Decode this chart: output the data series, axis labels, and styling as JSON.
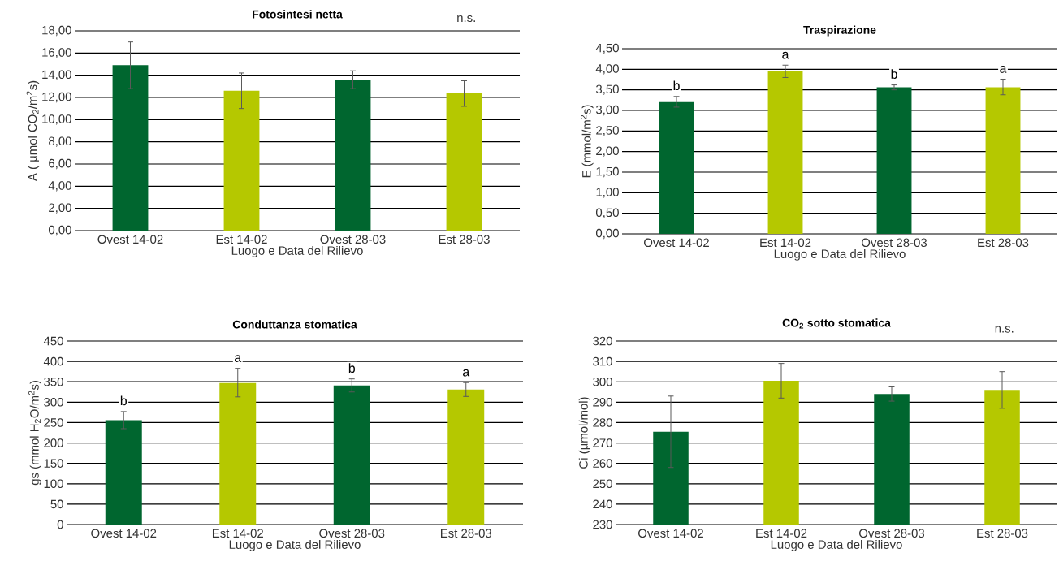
{
  "chart_data": [
    {
      "type": "bar",
      "title": "Fotosintesi netta",
      "xlabel": "Luogo e Data del Rilievo",
      "ylabel": "A ( μmol CO$_{2}$/m$^{2}$s)",
      "categories": [
        "Ovest 14-02",
        "Est 14-02",
        "Ovest 28-03",
        "Est 28-03"
      ],
      "values": [
        14.9,
        12.6,
        13.6,
        12.4
      ],
      "errors": [
        [
          12.8,
          17.0
        ],
        [
          11.0,
          14.2
        ],
        [
          12.8,
          14.4
        ],
        [
          11.2,
          13.5
        ]
      ],
      "colors": [
        "#00662f",
        "#b5c800",
        "#00662f",
        "#b5c800"
      ],
      "ylim": [
        0,
        18
      ],
      "yticks": [
        {
          "value": 0,
          "label": "0,00"
        },
        {
          "value": 2,
          "label": "2,00"
        },
        {
          "value": 4,
          "label": "4,00"
        },
        {
          "value": 6,
          "label": "6,00"
        },
        {
          "value": 8,
          "label": "8,00"
        },
        {
          "value": 10,
          "label": "10,00"
        },
        {
          "value": 12,
          "label": "12,00"
        },
        {
          "value": 14,
          "label": "14,00"
        },
        {
          "value": 16,
          "label": "16,00"
        },
        {
          "value": 18,
          "label": "18,00"
        }
      ],
      "grid": "y",
      "annotations": [
        "n.s."
      ]
    },
    {
      "type": "bar",
      "title": "Traspirazione",
      "xlabel": "Luogo e Data del Rilievo",
      "ylabel": "E (mmol/m$^{2}$s)",
      "categories": [
        "Ovest 14-02",
        "Est 14-02",
        "Ovest 28-03",
        "Est 28-03"
      ],
      "values": [
        3.2,
        3.95,
        3.56,
        3.56
      ],
      "errors": [
        [
          3.08,
          3.34
        ],
        [
          3.8,
          4.1
        ],
        [
          3.5,
          3.62
        ],
        [
          3.38,
          3.76
        ]
      ],
      "colors": [
        "#00662f",
        "#b5c800",
        "#00662f",
        "#b5c800"
      ],
      "ylim": [
        0,
        4.5
      ],
      "yticks": [
        {
          "value": 0,
          "label": "0,00"
        },
        {
          "value": 0.5,
          "label": "0,50"
        },
        {
          "value": 1,
          "label": "1,00"
        },
        {
          "value": 1.5,
          "label": "1,50"
        },
        {
          "value": 2,
          "label": "2,00"
        },
        {
          "value": 2.5,
          "label": "2,50"
        },
        {
          "value": 3,
          "label": "3,00"
        },
        {
          "value": 3.5,
          "label": "3,50"
        },
        {
          "value": 4,
          "label": "4,00"
        },
        {
          "value": 4.5,
          "label": "4,50"
        }
      ],
      "grid": "y",
      "annotations": [
        "b",
        "a",
        "b",
        "a"
      ]
    },
    {
      "type": "bar",
      "title": "Conduttanza stomatica",
      "xlabel": "Luogo e Data del Rilievo",
      "ylabel": "gs (mmol H$_{2}$O/m$^{2}$s)",
      "categories": [
        "Ovest 14-02",
        "Est 14-02",
        "Ovest 28-03",
        "Est 28-03"
      ],
      "values": [
        256,
        347,
        341,
        331
      ],
      "errors": [
        [
          235,
          277
        ],
        [
          313,
          383
        ],
        [
          325,
          357
        ],
        [
          314,
          348
        ]
      ],
      "colors": [
        "#00662f",
        "#b5c800",
        "#00662f",
        "#b5c800"
      ],
      "ylim": [
        0,
        450
      ],
      "yticks": [
        0,
        50,
        100,
        150,
        200,
        250,
        300,
        350,
        400,
        450
      ],
      "grid": "y",
      "annotations": [
        "b",
        "a",
        "b",
        "a"
      ]
    },
    {
      "type": "bar",
      "title": "CO$_{2}$ sotto stomatica",
      "xlabel": "Luogo e Data del Rilievo",
      "ylabel": "Ci (μmol/mol)",
      "categories": [
        "Ovest 14-02",
        "Est 14-02",
        "Ovest 28-03",
        "Est 28-03"
      ],
      "values": [
        275.5,
        300.5,
        294,
        296
      ],
      "errors": [
        [
          258,
          293
        ],
        [
          292,
          309
        ],
        [
          290.5,
          297.5
        ],
        [
          287,
          305
        ]
      ],
      "colors": [
        "#00662f",
        "#b5c800",
        "#00662f",
        "#b5c800"
      ],
      "ylim": [
        230,
        320
      ],
      "yticks": [
        230,
        240,
        250,
        260,
        270,
        280,
        290,
        300,
        310,
        320
      ],
      "grid": "y",
      "annotations": [
        "n.s."
      ]
    }
  ]
}
